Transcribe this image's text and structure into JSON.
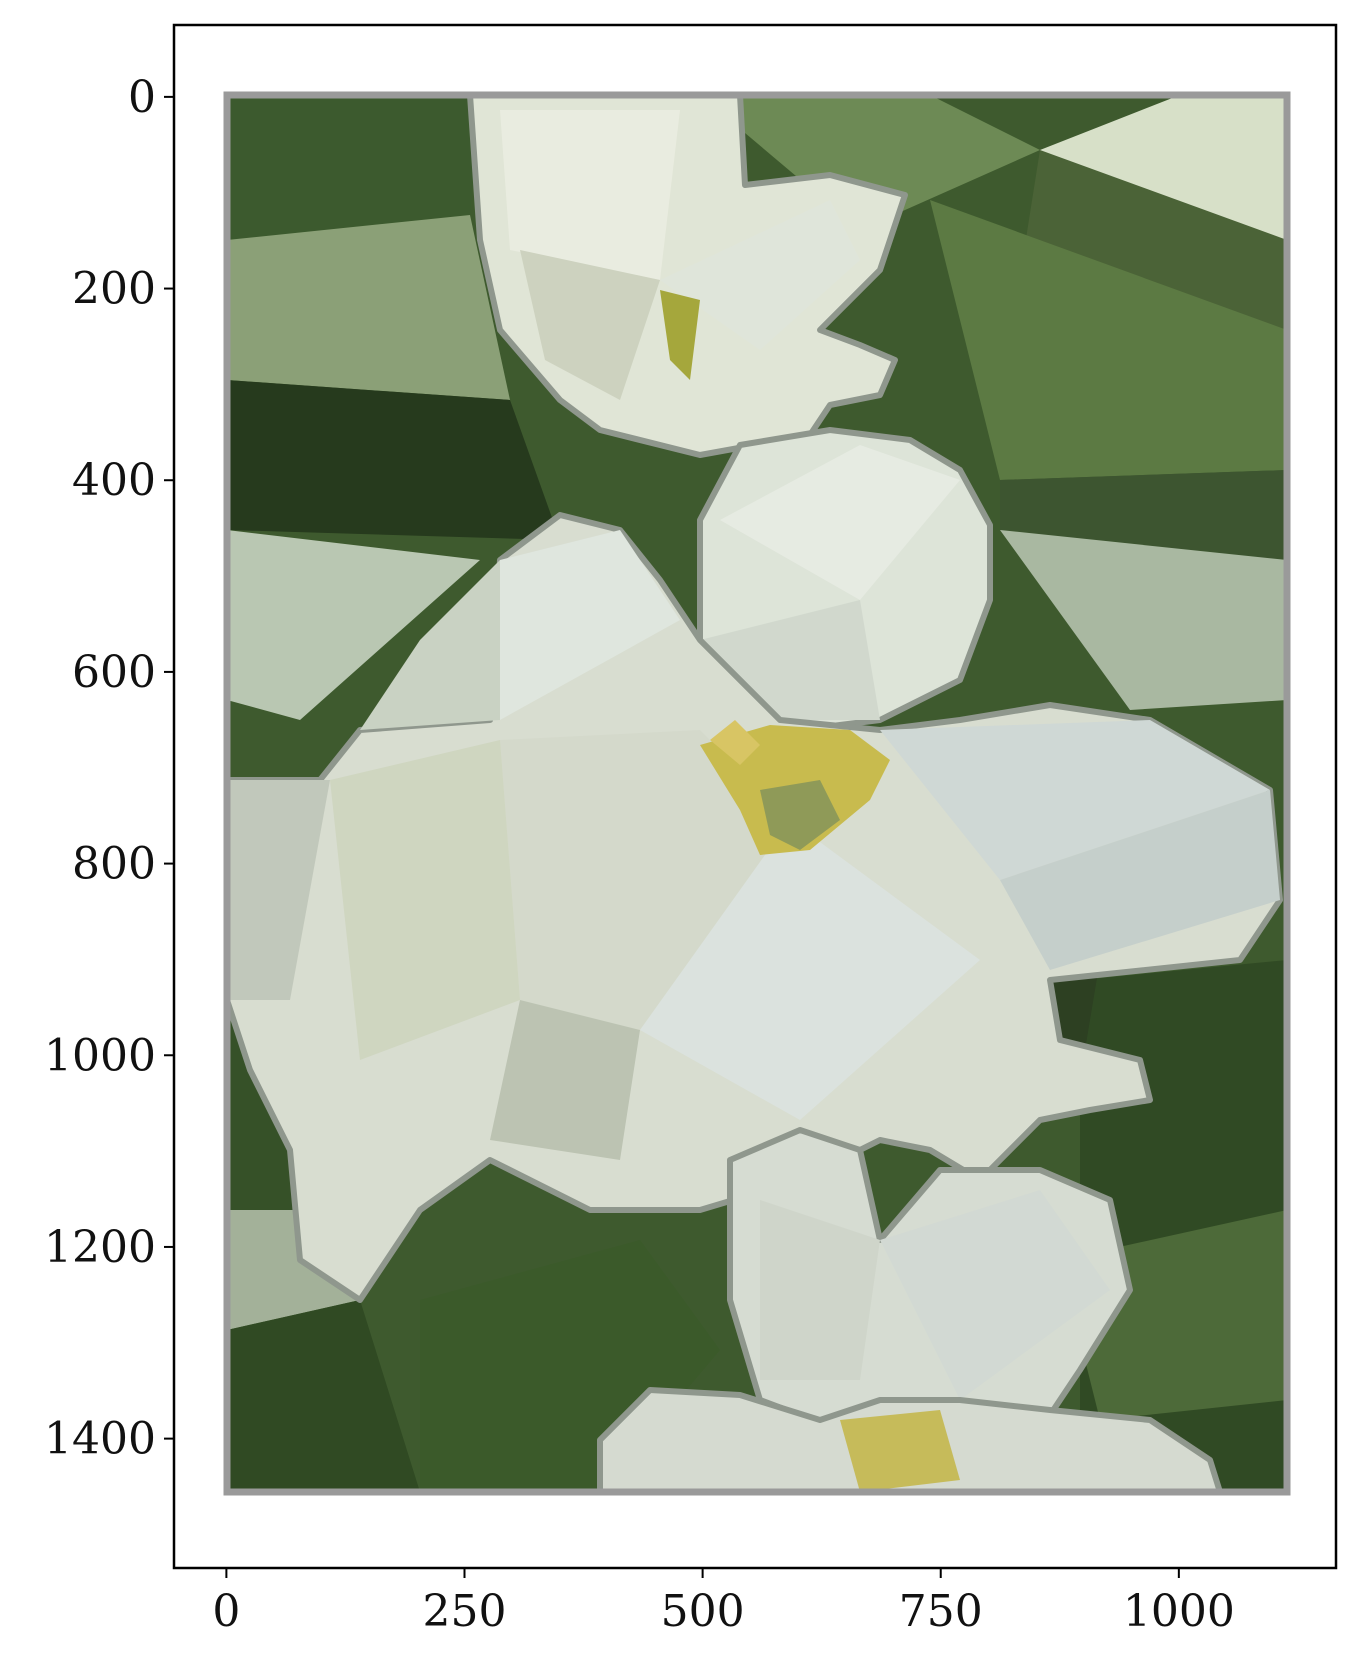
{
  "image": {
    "description_kind": "low-poly white flower artwork on green background, shown in plot axes",
    "palette": {
      "leaf_dark": "#2f4424",
      "leaf_mid": "#4b6a38",
      "leaf_light": "#7a9563",
      "petal_white": "#e3e8de",
      "petal_shade": "#c5cbbf",
      "petal_edge": "#8c948a",
      "center_yellow": "#c8b94a",
      "center_green": "#8f9a58",
      "frame_gray": "#9a9a9a"
    }
  },
  "axes": {
    "x_ticks": [
      "0",
      "250",
      "500",
      "750",
      "1000"
    ],
    "y_ticks": [
      "0",
      "200",
      "400",
      "600",
      "800",
      "1000",
      "1200",
      "1400"
    ],
    "x_values": [
      0,
      250,
      500,
      750,
      1000
    ],
    "y_values": [
      0,
      200,
      400,
      600,
      800,
      1000,
      1200,
      1400
    ],
    "xlim": [
      -55,
      1165
    ],
    "ylim": [
      1535,
      -75
    ]
  }
}
